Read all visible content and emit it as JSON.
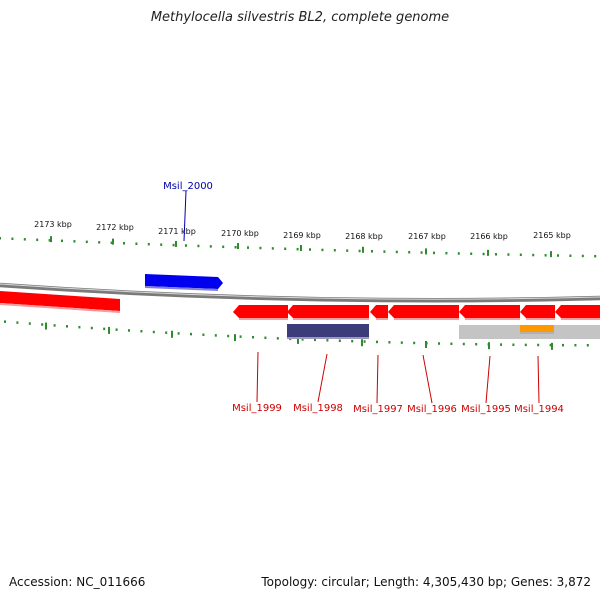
{
  "title": "Methylocella silvestris BL2, complete genome",
  "footer": {
    "accession": "Accession: NC_011666",
    "summary": "Topology: circular; Length: 4,305,430 bp; Genes: 3,872"
  },
  "colors": {
    "backbone": "#7a7a7a",
    "tick": "#2e8b2e",
    "gene_red": "#ff0000",
    "gene_blue": "#0000ee",
    "gene_navy": "#3c3c7a",
    "gene_orange": "#ff9900",
    "region_gray": "#c4c4c4",
    "label_red": "#cc0000",
    "label_blue": "#0000aa"
  },
  "kbp_labels": [
    "2173 kbp",
    "2172 kbp",
    "2171 kbp",
    "2170 kbp",
    "2169 kbp",
    "2168 kbp",
    "2167 kbp",
    "2166 kbp",
    "2165 kbp"
  ],
  "genes": [
    {
      "id": "Msil_2000",
      "strand": "+",
      "color": "blue"
    },
    {
      "id": "Msil_1999",
      "strand": "-",
      "color": "red"
    },
    {
      "id": "Msil_1998",
      "strand": "-",
      "color": "red"
    },
    {
      "id": "Msil_1997",
      "strand": "-",
      "color": "red"
    },
    {
      "id": "Msil_1996",
      "strand": "-",
      "color": "red"
    },
    {
      "id": "Msil_1995",
      "strand": "-",
      "color": "red"
    },
    {
      "id": "Msil_1994",
      "strand": "-",
      "color": "red"
    }
  ]
}
